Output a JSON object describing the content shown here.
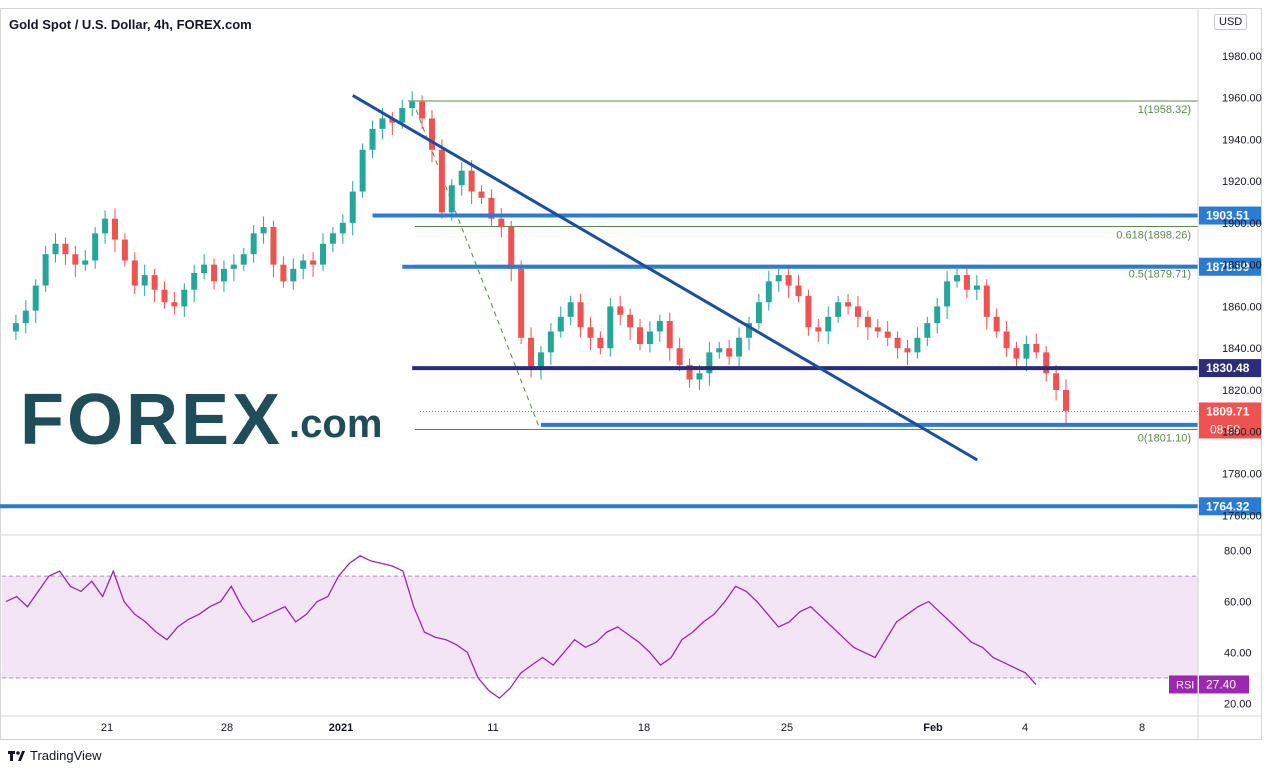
{
  "title": "Gold Spot / U.S. Dollar, 4h, FOREX.com",
  "currency_badge": "USD",
  "footer_brand": "TradingView",
  "logo": {
    "main": "FOREX",
    "suffix": ".com"
  },
  "colors": {
    "up": "#26a69a",
    "down": "#ef5350",
    "level_blue": "#2a7bd4",
    "trend_blue": "#1a4fa3",
    "support_navy": "#2c2d7a",
    "fib_green": "#5a8a4a",
    "rsi_line": "#9c27b0",
    "rsi_band": "#f3e5f5",
    "current_red": "#ef5350"
  },
  "chart_data": [
    {
      "type": "candlestick",
      "title": "Gold Spot / U.S. Dollar, 4h, FOREX.com",
      "y_axis": {
        "range": [
          1752,
          2000
        ],
        "ticks": [
          "1980.00",
          "1960.00",
          "1940.00",
          "1920.00",
          "1900.00",
          "1880.00",
          "1860.00",
          "1840.00",
          "1820.00",
          "1800.00",
          "1780.00",
          "1760.00"
        ]
      },
      "x_axis": {
        "ticks": [
          "21",
          "28",
          "2021",
          "11",
          "18",
          "25",
          "Feb",
          "4",
          "8"
        ]
      },
      "price_path": [
        1848,
        1852,
        1858,
        1870,
        1885,
        1890,
        1885,
        1880,
        1882,
        1895,
        1902,
        1892,
        1882,
        1870,
        1875,
        1868,
        1862,
        1860,
        1868,
        1876,
        1880,
        1872,
        1878,
        1880,
        1885,
        1895,
        1898,
        1880,
        1872,
        1878,
        1882,
        1880,
        1890,
        1895,
        1900,
        1915,
        1935,
        1945,
        1950,
        1948,
        1955,
        1958,
        1950,
        1935,
        1905,
        1918,
        1925,
        1915,
        1912,
        1902,
        1898,
        1878,
        1845,
        1830,
        1838,
        1848,
        1855,
        1862,
        1850,
        1845,
        1840,
        1860,
        1856,
        1850,
        1842,
        1848,
        1853,
        1840,
        1832,
        1825,
        1828,
        1838,
        1840,
        1836,
        1845,
        1852,
        1862,
        1872,
        1875,
        1870,
        1865,
        1850,
        1848,
        1855,
        1862,
        1860,
        1855,
        1850,
        1848,
        1845,
        1840,
        1838,
        1845,
        1852,
        1860,
        1872,
        1875,
        1868,
        1870,
        1855,
        1848,
        1840,
        1835,
        1842,
        1838,
        1828,
        1820,
        1810
      ],
      "levels": [
        {
          "label": "1903.51",
          "value": 1903.51,
          "start_index": 37
        },
        {
          "label": "1878.99",
          "value": 1878.99,
          "start_index": 40
        },
        {
          "label": "1830.48",
          "value": 1830.48,
          "start_index": 41,
          "style": "navy"
        },
        {
          "label": "1803.26",
          "value": 1803.26,
          "start_index": 54
        },
        {
          "label": "1764.32",
          "value": 1764.32,
          "start_index": 0
        }
      ],
      "current_price": {
        "label": "1809.71",
        "countdown": "08:59",
        "value": 1809.71
      },
      "fibonacci": [
        {
          "label": "1(1958.32)",
          "value": 1958.32
        },
        {
          "label": "0.618(1898.26)",
          "value": 1898.26
        },
        {
          "label": "0.5(1879.71)",
          "value": 1879.71
        },
        {
          "label": "0(1801.10)",
          "value": 1801.1
        }
      ],
      "trendline": {
        "from": {
          "index": 35,
          "value": 1961
        },
        "to": {
          "index": 93,
          "value": 1797
        }
      }
    },
    {
      "type": "line",
      "name": "RSI",
      "y_axis": {
        "range": [
          15,
          85
        ],
        "ticks": [
          "80.00",
          "60.00",
          "40.00",
          "20.00"
        ]
      },
      "band": [
        30,
        70
      ],
      "last_value": "27.40",
      "values": [
        60,
        62,
        58,
        64,
        70,
        72,
        66,
        64,
        68,
        62,
        72,
        60,
        55,
        52,
        48,
        45,
        50,
        53,
        55,
        58,
        60,
        66,
        58,
        52,
        54,
        56,
        58,
        52,
        55,
        60,
        62,
        70,
        75,
        78,
        76,
        75,
        74,
        72,
        58,
        48,
        46,
        45,
        43,
        40,
        30,
        25,
        22,
        26,
        32,
        35,
        38,
        35,
        40,
        45,
        42,
        44,
        48,
        50,
        47,
        44,
        40,
        35,
        38,
        45,
        48,
        52,
        55,
        60,
        66,
        64,
        60,
        55,
        50,
        52,
        56,
        58,
        54,
        50,
        46,
        42,
        40,
        38,
        45,
        52,
        55,
        58,
        60,
        56,
        52,
        48,
        44,
        42,
        38,
        36,
        34,
        32,
        27.4
      ]
    }
  ]
}
